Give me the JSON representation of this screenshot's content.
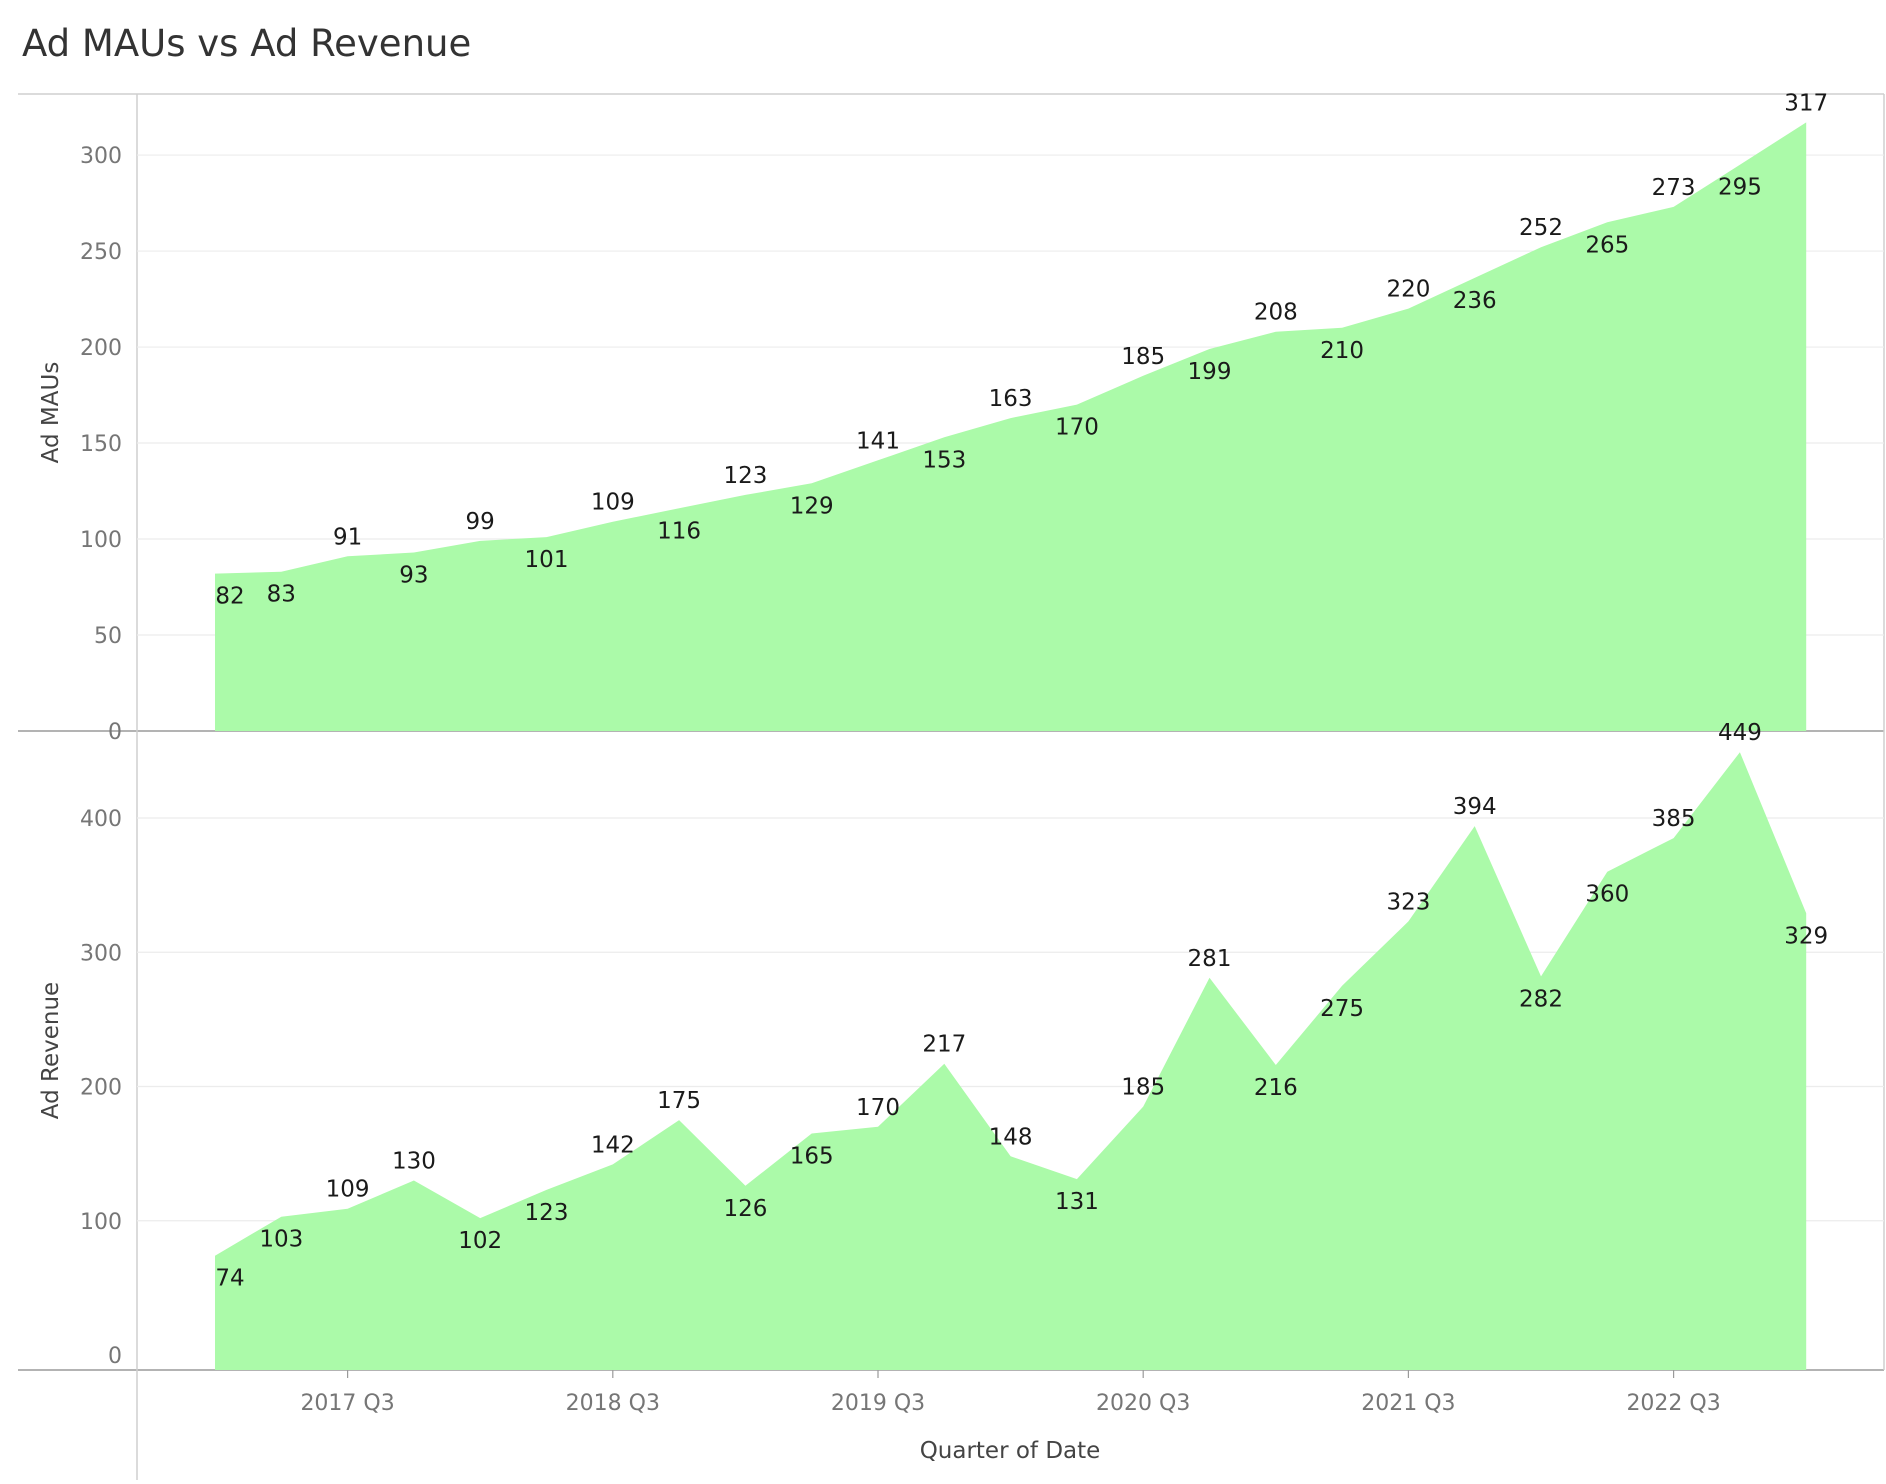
{
  "chart_data": {
    "title": "Ad MAUs vs Ad Revenue",
    "type": "area",
    "xlabel": "Quarter of Date",
    "x_tick_labels": [
      "2017 Q3",
      "2018 Q3",
      "2019 Q3",
      "2020 Q3",
      "2021 Q3",
      "2022 Q3"
    ],
    "x": [
      "2017 Q1",
      "2017 Q2",
      "2017 Q3",
      "2017 Q4",
      "2018 Q1",
      "2018 Q2",
      "2018 Q3",
      "2018 Q4",
      "2019 Q1",
      "2019 Q2",
      "2019 Q3",
      "2019 Q4",
      "2020 Q1",
      "2020 Q2",
      "2020 Q3",
      "2020 Q4",
      "2021 Q1",
      "2021 Q2",
      "2021 Q3",
      "2021 Q4",
      "2022 Q1",
      "2022 Q2",
      "2022 Q3",
      "2022 Q4",
      "2023 Q1"
    ],
    "color": "#abfaa9",
    "grid": true,
    "panels": [
      {
        "ylabel": "Ad MAUs",
        "ylim": [
          0,
          320
        ],
        "yticks": [
          0,
          50,
          100,
          150,
          200,
          250,
          300
        ],
        "values": [
          82,
          83,
          91,
          93,
          99,
          101,
          109,
          116,
          123,
          129,
          141,
          153,
          163,
          170,
          185,
          199,
          208,
          210,
          220,
          236,
          252,
          265,
          273,
          295,
          317
        ]
      },
      {
        "ylabel": "Ad Revenue",
        "ylim": [
          -10,
          460
        ],
        "yticks": [
          0,
          100,
          200,
          300,
          400
        ],
        "values": [
          74,
          103,
          109,
          130,
          102,
          123,
          142,
          175,
          126,
          165,
          170,
          217,
          148,
          131,
          185,
          281,
          216,
          275,
          323,
          394,
          282,
          360,
          385,
          449,
          329
        ]
      }
    ]
  }
}
